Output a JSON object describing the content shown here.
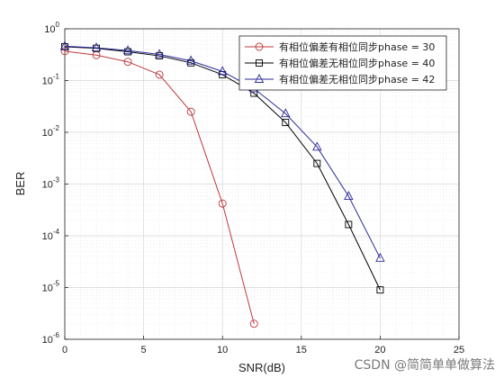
{
  "chart_data": {
    "type": "line",
    "title": "",
    "xlabel": "SNR(dB)",
    "ylabel": "BER",
    "xlim": [
      0,
      25
    ],
    "ylim": [
      1e-06,
      1
    ],
    "yscale": "log",
    "grid": true,
    "minor_grid": true,
    "legend_position": "top-right",
    "x_ticks": [
      0,
      5,
      10,
      15,
      20,
      25
    ],
    "x_tick_labels": [
      "0",
      "5",
      "10",
      "15",
      "20",
      "25"
    ],
    "y_tick_bases": [
      "10",
      "10",
      "10",
      "10",
      "10",
      "10",
      "10"
    ],
    "y_tick_exponents": [
      "-6",
      "-5",
      "-4",
      "-3",
      "-2",
      "-1",
      "0"
    ],
    "y_tick_values": [
      1e-06,
      1e-05,
      0.0001,
      0.001,
      0.01,
      0.1,
      1
    ],
    "series": [
      {
        "name": "有相位偏差有相位同步phase = 30",
        "color": "#c0393b",
        "marker": "circle",
        "x": [
          0,
          2,
          4,
          6,
          8,
          10,
          12
        ],
        "y": [
          0.37,
          0.31,
          0.23,
          0.13,
          0.025,
          0.00042,
          2e-06
        ]
      },
      {
        "name": "有相位偏差无相位同步phase = 40",
        "color": "#000000",
        "marker": "square",
        "x": [
          0,
          2,
          4,
          6,
          8,
          10,
          12,
          14,
          16,
          18,
          20
        ],
        "y": [
          0.45,
          0.42,
          0.36,
          0.3,
          0.22,
          0.13,
          0.057,
          0.0155,
          0.0025,
          0.000165,
          9e-06
        ]
      },
      {
        "name": "有相位偏差无相位同步phase = 42",
        "color": "#2a2a9a",
        "marker": "triangle",
        "x": [
          0,
          2,
          4,
          6,
          8,
          10,
          12,
          14,
          16,
          18,
          20
        ],
        "y": [
          0.46,
          0.43,
          0.38,
          0.32,
          0.24,
          0.15,
          0.07,
          0.023,
          0.0052,
          0.00058,
          3.7e-05
        ]
      }
    ]
  },
  "watermark": "CSDN @简简单单做算法"
}
